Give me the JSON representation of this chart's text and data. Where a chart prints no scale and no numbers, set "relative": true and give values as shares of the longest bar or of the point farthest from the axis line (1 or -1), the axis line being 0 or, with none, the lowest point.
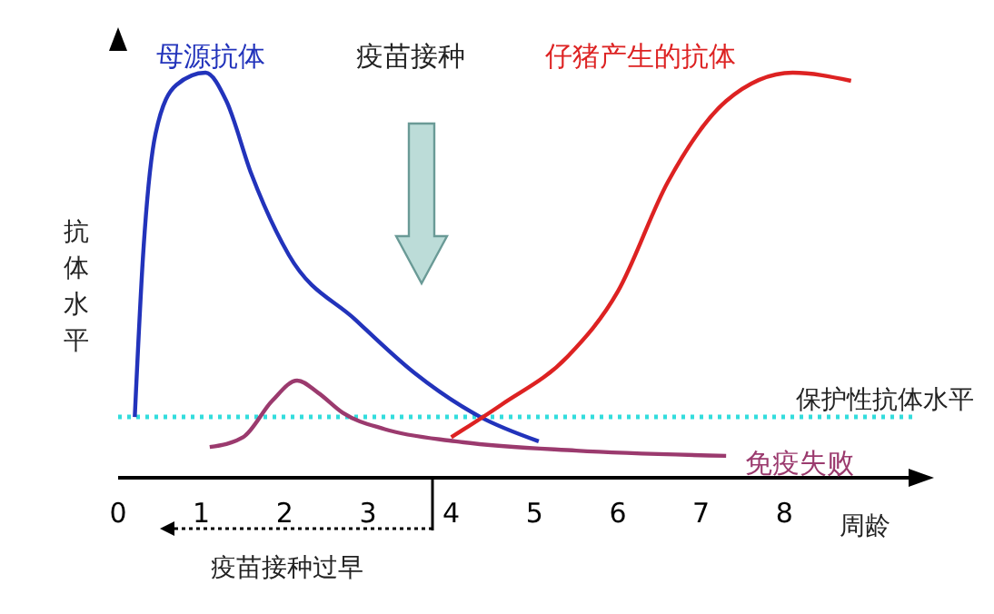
{
  "chart_data": {
    "type": "line",
    "relative": true,
    "xlabel": "周龄",
    "ylabel": "抗体水平",
    "xlim": [
      0,
      9.6
    ],
    "xticks": [
      0,
      1,
      2,
      3,
      4,
      5,
      6,
      7,
      8
    ],
    "marker": "none",
    "line_style": "solid",
    "series": [
      {
        "name": "母源抗体",
        "color": "#2233bb",
        "x": [
          0.2,
          0.3,
          0.45,
          0.7,
          1.05,
          1.3,
          1.6,
          2.05,
          2.85,
          3.55,
          4.35,
          5.05
        ],
        "values": [
          0.15,
          0.55,
          0.85,
          0.97,
          1,
          0.93,
          0.75,
          0.55,
          0.39,
          0.26,
          0.15,
          0.09
        ]
      },
      {
        "name": "免疫失败",
        "color": "#9b3a6e",
        "x": [
          1.1,
          1.5,
          1.85,
          2.15,
          2.4,
          2.7,
          3.2,
          4.05,
          5.5,
          7.3
        ],
        "values": [
          0.076,
          0.1,
          0.19,
          0.24,
          0.21,
          0.16,
          0.12,
          0.09,
          0.067,
          0.054
        ]
      },
      {
        "name": "仔猪产生的抗体",
        "color": "#dd2222",
        "x": [
          4.0,
          4.6,
          5.4,
          6.0,
          6.6,
          7.3,
          8.1,
          8.8
        ],
        "values": [
          0.1,
          0.18,
          0.3,
          0.46,
          0.73,
          0.93,
          1,
          0.98
        ]
      }
    ],
    "ref_lines": [
      {
        "axis": "y",
        "value": 0.15,
        "label": "保护性抗体水平",
        "color": "#33dddd",
        "line_style": "dotted"
      }
    ],
    "annotations": [
      "疫苗接种",
      "疫苗接种过早"
    ]
  }
}
